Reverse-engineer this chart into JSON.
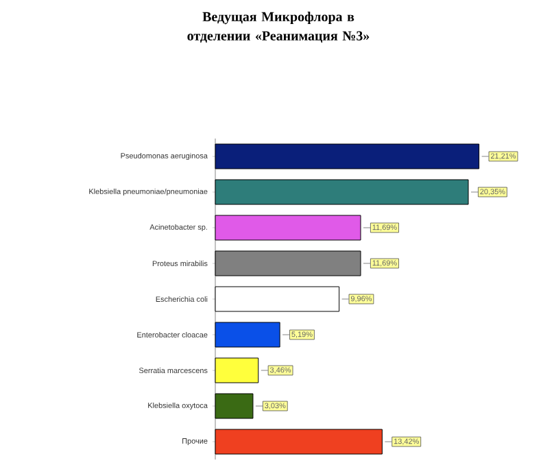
{
  "chart_data": {
    "type": "bar",
    "orientation": "horizontal",
    "title": "Ведущая Микрофлора в отделении «Реанимация №3»",
    "categories": [
      "Pseudomonas aeruginosa",
      "Klebsiella pneumoniae/pneumoniae",
      "Acinetobacter sp.",
      "Proteus mirabilis",
      "Escherichia coli",
      "Enterobacter cloacae",
      "Serratia marcescens",
      "Klebsiella oxytoca",
      "Прочие"
    ],
    "values": [
      21.21,
      20.35,
      11.69,
      11.69,
      9.96,
      5.19,
      3.46,
      3.03,
      13.42
    ],
    "value_labels": [
      "21,21%",
      "20,35%",
      "11,69%",
      "11,69%",
      "9,96%",
      "5,19%",
      "3,46%",
      "3,03%",
      "13,42%"
    ],
    "colors": [
      "#0a1f7a",
      "#2e7d7a",
      "#e05ae8",
      "#808080",
      "#ffffff",
      "#0a50e8",
      "#ffff3c",
      "#3a6a14",
      "#ef4020"
    ],
    "tick_labels": "y"
  }
}
